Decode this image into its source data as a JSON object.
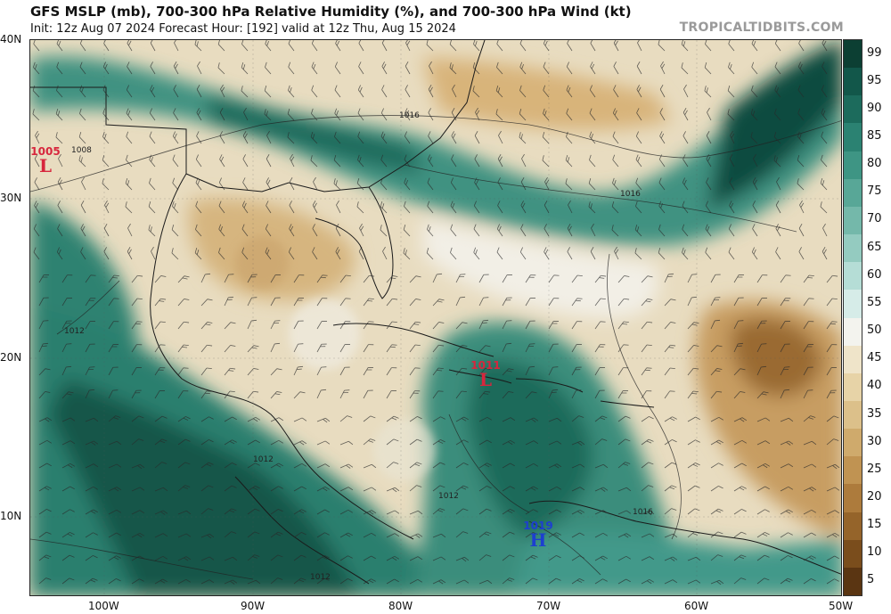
{
  "header": {
    "title": "GFS MSLP (mb), 700-300 hPa Relative Humidity (%), and 700-300 hPa Wind (kt)",
    "subtitle": "Init: 12z Aug 07 2024   Forecast Hour: [192]   valid at 12z Thu, Aug 15 2024",
    "brand": "TROPICALTIDBITS.COM"
  },
  "axes": {
    "lat_labels": [
      "40N",
      "30N",
      "20N",
      "10N"
    ],
    "lon_labels": [
      "100W",
      "90W",
      "80W",
      "70W",
      "60W",
      "50W"
    ]
  },
  "colorbar": {
    "labels": [
      "99",
      "95",
      "90",
      "85",
      "80",
      "75",
      "70",
      "65",
      "60",
      "55",
      "50",
      "45",
      "40",
      "35",
      "30",
      "25",
      "20",
      "15",
      "10",
      "5"
    ],
    "colors": [
      "#0c3f33",
      "#12574a",
      "#1c6b5c",
      "#2b8272",
      "#3e9584",
      "#58a797",
      "#74b8aa",
      "#94cbc0",
      "#b5ddd6",
      "#d6ece8",
      "#f3f3ee",
      "#efe4c9",
      "#e7d3a7",
      "#dcc08a",
      "#cfaa6c",
      "#c09352",
      "#ad7b3c",
      "#95642a",
      "#7a4d1c",
      "#5a3512"
    ]
  },
  "pressure_centers": [
    {
      "value": "1005",
      "symbol": "L",
      "color": "#d7263d"
    },
    {
      "value": "1011",
      "symbol": "L",
      "color": "#d7263d"
    },
    {
      "value": "1019",
      "symbol": "H",
      "color": "#1d3fd0"
    }
  ],
  "isobar_labels": [
    "1008",
    "1016",
    "1016",
    "1012",
    "1012",
    "1012",
    "1016",
    "1012"
  ]
}
